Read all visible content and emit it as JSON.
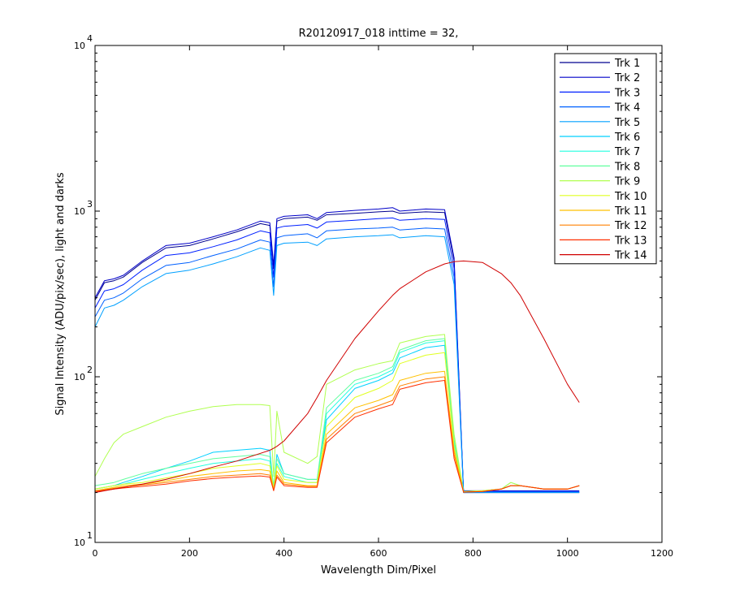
{
  "chart_data": {
    "type": "line",
    "title": "R20120917_018 inttime = 32,",
    "xlabel": "Wavelength Dim/Pixel",
    "ylabel": "Signal Intensity (ADU/pix/sec), light and darks",
    "xlim": [
      0,
      1200
    ],
    "ylim": [
      10,
      10000
    ],
    "yscale": "log",
    "x_ticks": [
      0,
      200,
      400,
      600,
      800,
      1000,
      1200
    ],
    "x_tick_labels": [
      "0",
      "200",
      "400",
      "600",
      "800",
      "1000",
      "1200"
    ],
    "y_ticks": [
      {
        "value": 10,
        "base": "10",
        "exp": "1"
      },
      {
        "value": 100,
        "base": "10",
        "exp": "2"
      },
      {
        "value": 1000,
        "base": "10",
        "exp": "3"
      },
      {
        "value": 10000,
        "base": "10",
        "exp": "4"
      }
    ],
    "grid": false,
    "legend_position": "top-right",
    "x": [
      0,
      20,
      40,
      60,
      100,
      150,
      200,
      250,
      300,
      350,
      370,
      378,
      385,
      400,
      450,
      470,
      490,
      550,
      600,
      630,
      645,
      700,
      740,
      760,
      780,
      820,
      860,
      880,
      900,
      950,
      1000,
      1025
    ],
    "series": [
      {
        "name": "Trk 1",
        "color": "#00008f",
        "values": [
          290,
          370,
          380,
          400,
          490,
          600,
          620,
          680,
          750,
          840,
          820,
          450,
          870,
          900,
          920,
          880,
          950,
          970,
          990,
          1000,
          970,
          990,
          980,
          500,
          20,
          20,
          20,
          20,
          20,
          20,
          20,
          20
        ]
      },
      {
        "name": "Trk 2",
        "color": "#0000c8",
        "values": [
          300,
          380,
          390,
          410,
          500,
          620,
          640,
          700,
          770,
          870,
          850,
          470,
          900,
          930,
          950,
          900,
          980,
          1010,
          1030,
          1050,
          1000,
          1030,
          1020,
          520,
          20.5,
          20.5,
          20.5,
          20.5,
          20.5,
          20.5,
          20.5,
          20.5
        ]
      },
      {
        "name": "Trk 3",
        "color": "#0020ff",
        "values": [
          260,
          330,
          340,
          360,
          440,
          540,
          560,
          610,
          670,
          760,
          740,
          400,
          790,
          810,
          830,
          790,
          860,
          880,
          900,
          910,
          880,
          900,
          890,
          450,
          20.3,
          20.3,
          20.3,
          20.3,
          20.3,
          20.3,
          20.3,
          20.3
        ]
      },
      {
        "name": "Trk 4",
        "color": "#0060ff",
        "values": [
          230,
          290,
          300,
          320,
          390,
          470,
          490,
          540,
          590,
          670,
          650,
          350,
          690,
          710,
          730,
          690,
          760,
          780,
          790,
          800,
          770,
          790,
          780,
          400,
          20.2,
          20.2,
          20.2,
          20.2,
          20.2,
          20.2,
          20.2,
          20.2
        ]
      },
      {
        "name": "Trk 5",
        "color": "#00a0ff",
        "values": [
          200,
          260,
          270,
          290,
          350,
          420,
          440,
          480,
          530,
          600,
          580,
          310,
          620,
          640,
          650,
          620,
          680,
          700,
          710,
          720,
          690,
          710,
          700,
          360,
          20,
          20,
          20,
          20,
          20,
          20,
          20,
          20
        ]
      },
      {
        "name": "Trk 6",
        "color": "#00d0ff",
        "values": [
          21,
          21.5,
          22,
          23,
          25,
          28,
          31,
          35,
          36,
          37,
          36,
          21,
          34,
          26,
          24,
          24,
          55,
          85,
          95,
          105,
          130,
          150,
          155,
          40,
          20.2,
          20.5,
          21,
          22,
          22,
          21,
          21,
          22
        ]
      },
      {
        "name": "Trk 7",
        "color": "#20ffdf",
        "values": [
          21,
          21.5,
          22,
          22.5,
          24,
          26,
          28,
          30,
          31,
          32,
          31,
          21,
          30,
          25,
          23,
          23,
          60,
          90,
          100,
          110,
          140,
          160,
          165,
          40,
          20.2,
          20.5,
          21,
          22,
          22,
          21,
          21,
          22
        ]
      },
      {
        "name": "Trk 8",
        "color": "#60ff9f",
        "values": [
          22,
          22.5,
          23,
          24,
          26,
          28,
          30,
          32,
          33,
          34,
          33,
          22,
          32,
          26,
          24,
          24,
          65,
          95,
          105,
          115,
          145,
          165,
          170,
          42,
          20.3,
          20.5,
          21,
          23,
          22,
          21,
          21,
          22
        ]
      },
      {
        "name": "Trk 9",
        "color": "#b0ff50",
        "values": [
          25,
          32,
          40,
          45,
          50,
          57,
          62,
          66,
          68,
          68,
          67,
          25,
          62,
          35,
          30,
          33,
          90,
          110,
          120,
          125,
          160,
          175,
          180,
          45,
          20.3,
          20.5,
          21,
          23,
          22,
          21,
          21,
          22
        ]
      },
      {
        "name": "Trk 10",
        "color": "#e0ff20",
        "values": [
          21,
          21.5,
          22,
          22.5,
          23,
          24.5,
          26,
          28,
          29,
          30,
          29,
          21,
          29,
          24,
          23,
          23,
          50,
          75,
          85,
          95,
          120,
          135,
          140,
          38,
          20.2,
          20.5,
          21,
          22,
          22,
          21,
          21,
          22
        ]
      },
      {
        "name": "Trk 11",
        "color": "#ffc000",
        "values": [
          20.5,
          21,
          21.5,
          22,
          22.5,
          23.5,
          25,
          26,
          27,
          27.5,
          27,
          20.8,
          27,
          23,
          22,
          22,
          45,
          65,
          72,
          78,
          95,
          105,
          108,
          36,
          20.1,
          20.3,
          21,
          22,
          22,
          21,
          21,
          22
        ]
      },
      {
        "name": "Trk 12",
        "color": "#ff8000",
        "values": [
          20.4,
          20.8,
          21.2,
          21.6,
          22.2,
          23,
          24,
          25,
          25.5,
          26,
          25.5,
          20.6,
          25.5,
          22.5,
          21.8,
          21.8,
          42,
          60,
          67,
          72,
          88,
          97,
          100,
          34,
          20.1,
          20.3,
          21,
          22,
          22,
          21,
          21,
          22
        ]
      },
      {
        "name": "Trk 13",
        "color": "#ff3000",
        "values": [
          20.3,
          20.6,
          21,
          21.3,
          21.8,
          22.5,
          23.5,
          24.3,
          24.8,
          25.2,
          24.8,
          20.5,
          24.8,
          22,
          21.5,
          21.5,
          40,
          57,
          64,
          68,
          84,
          92,
          95,
          32,
          20.1,
          20.3,
          21,
          22,
          22,
          21,
          21,
          22
        ]
      },
      {
        "name": "Trk 14",
        "color": "#d00000",
        "values": [
          20,
          20.5,
          21,
          21.5,
          22.5,
          24,
          26,
          28.5,
          31,
          34.5,
          36,
          37,
          38,
          41,
          60,
          75,
          95,
          170,
          250,
          310,
          340,
          430,
          480,
          495,
          500,
          490,
          420,
          370,
          310,
          170,
          90,
          70
        ]
      }
    ]
  }
}
